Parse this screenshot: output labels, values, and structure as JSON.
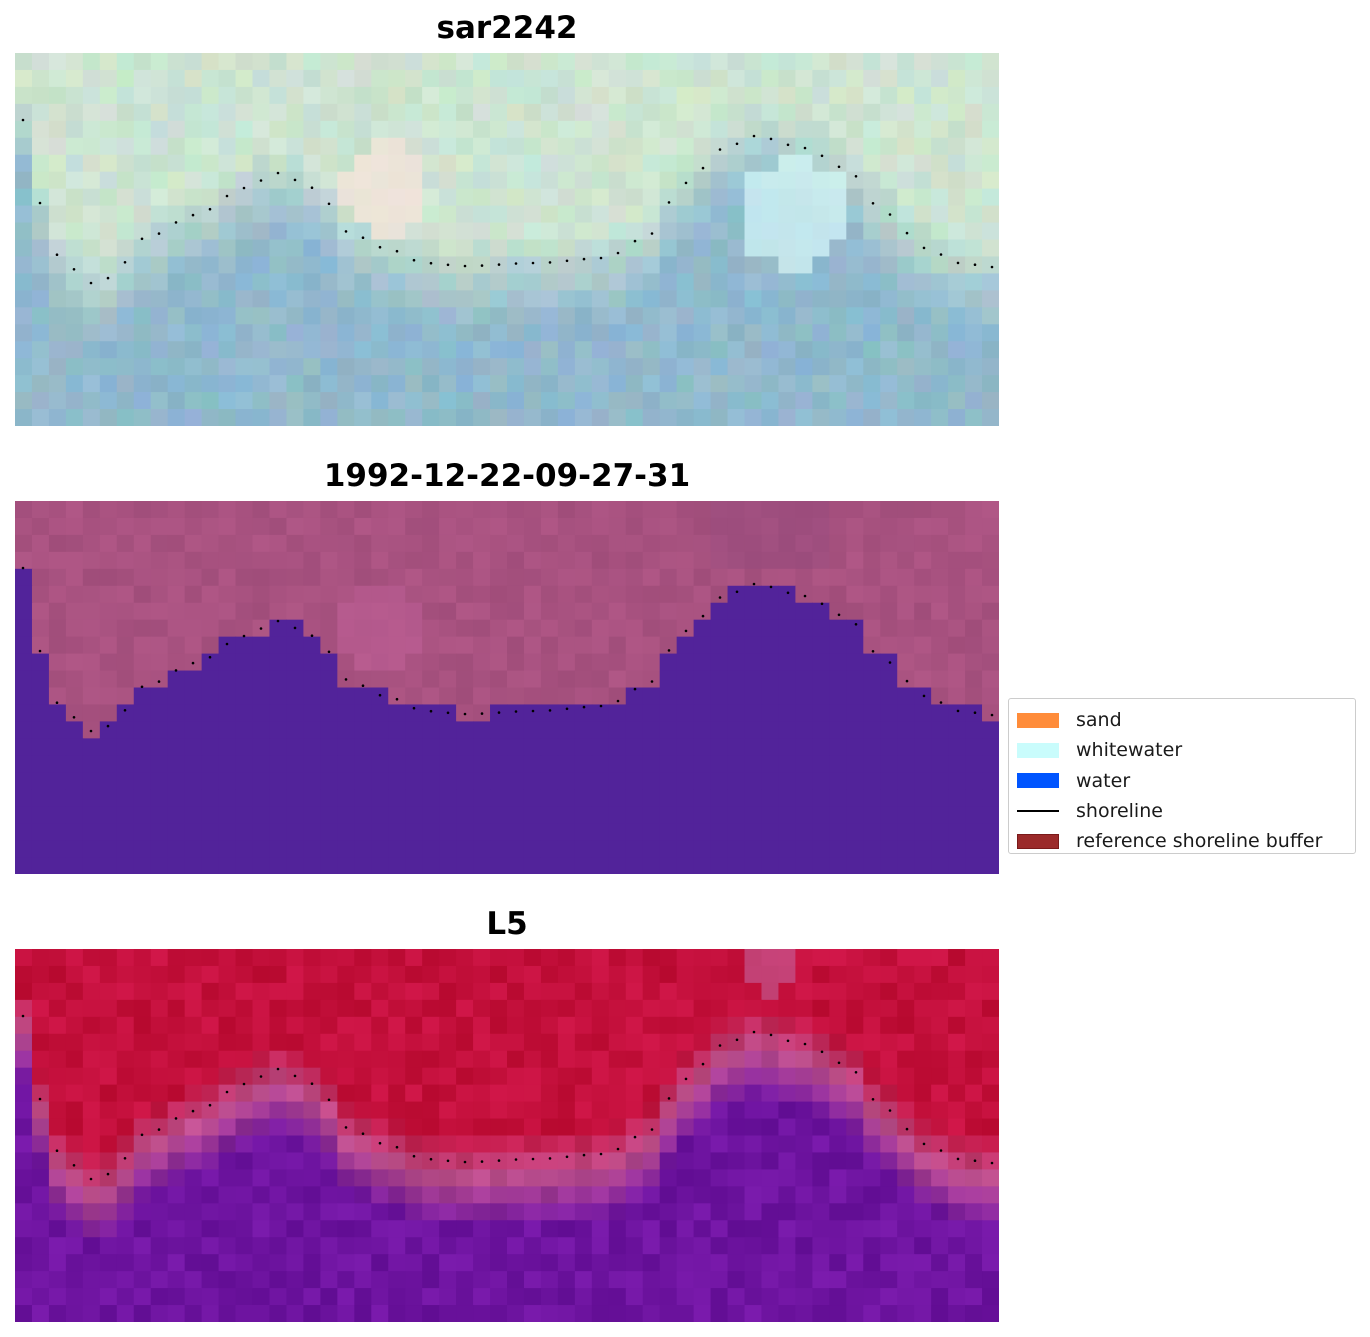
{
  "panels": [
    {
      "title": "sar2242",
      "kind": "rgb"
    },
    {
      "title": "1992-12-22-09-27-31",
      "kind": "classified"
    },
    {
      "title": "L5",
      "kind": "index"
    }
  ],
  "legend": {
    "items": [
      {
        "label": "sand",
        "color": "#ff8c3a",
        "type": "patch"
      },
      {
        "label": "whitewater",
        "color": "#c9fcfc",
        "type": "patch"
      },
      {
        "label": "water",
        "color": "#0055ff",
        "type": "patch"
      },
      {
        "label": "shoreline",
        "color": "#000000",
        "type": "line"
      },
      {
        "label": "reference shoreline buffer",
        "color": "#9b2a2a",
        "type": "patch"
      }
    ]
  },
  "colors": {
    "water_class_fill": "#52239a",
    "buffer_tint": "#a8507e",
    "shoreline_dots": "#000000"
  }
}
